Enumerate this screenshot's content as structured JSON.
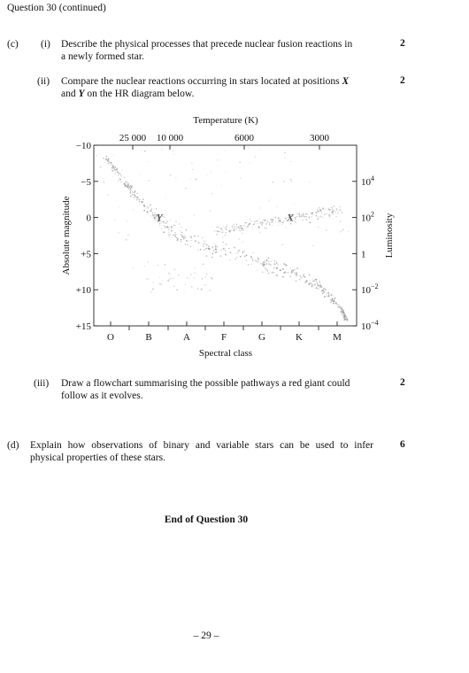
{
  "header": "Question 30 (continued)",
  "part_c": {
    "label": "(c)",
    "i": {
      "label": "(i)",
      "line1": "Describe the physical processes that precede nuclear fusion reactions in",
      "line2": "a newly formed star.",
      "marks": "2"
    },
    "ii": {
      "label": "(ii)",
      "line1": "Compare the nuclear reactions occurring in stars located at positions X",
      "line2": "and Y on the HR diagram below.",
      "marks": "2"
    },
    "iii": {
      "label": "(iii)",
      "line1": "Draw a flowchart summarising the possible pathways a red giant could",
      "line2": "follow as it evolves.",
      "marks": "2"
    }
  },
  "part_d": {
    "label": "(d)",
    "line1": "Explain how observations of binary and variable stars can be used to infer",
    "line2": "physical properties of these stars.",
    "marks": "6"
  },
  "end_text": "End of Question 30",
  "page_number": "– 29 –",
  "chart_data": {
    "type": "scatter",
    "title_top": "Temperature (K)",
    "top_ticks": [
      "25 000",
      "10 000",
      "6000",
      "3000"
    ],
    "xlabel": "Spectral class",
    "x_categories": [
      "O",
      "B",
      "A",
      "F",
      "G",
      "K",
      "M"
    ],
    "ylabel_left": "Absolute magnitude",
    "left_ticks": [
      "−10",
      "−5",
      "0",
      "+5",
      "+10",
      "+15"
    ],
    "left_tick_values": [
      -10,
      -5,
      0,
      5,
      10,
      15
    ],
    "ylim": [
      -10,
      15
    ],
    "ylabel_right": "Luminosity",
    "right_ticks": [
      {
        "base": "10",
        "exp": "4",
        "mag": -5
      },
      {
        "base": "10",
        "exp": "2",
        "mag": 0
      },
      {
        "base": "1",
        "exp": "",
        "mag": 5
      },
      {
        "base": "10",
        "exp": "−2",
        "mag": 10
      },
      {
        "base": "10",
        "exp": "−4",
        "mag": 15
      }
    ],
    "markers": [
      {
        "label": "Y",
        "spectral": "B",
        "magnitude": 0
      },
      {
        "label": "X",
        "spectral": "K",
        "magnitude": 0
      }
    ],
    "point_color": "#9a9a9a"
  }
}
